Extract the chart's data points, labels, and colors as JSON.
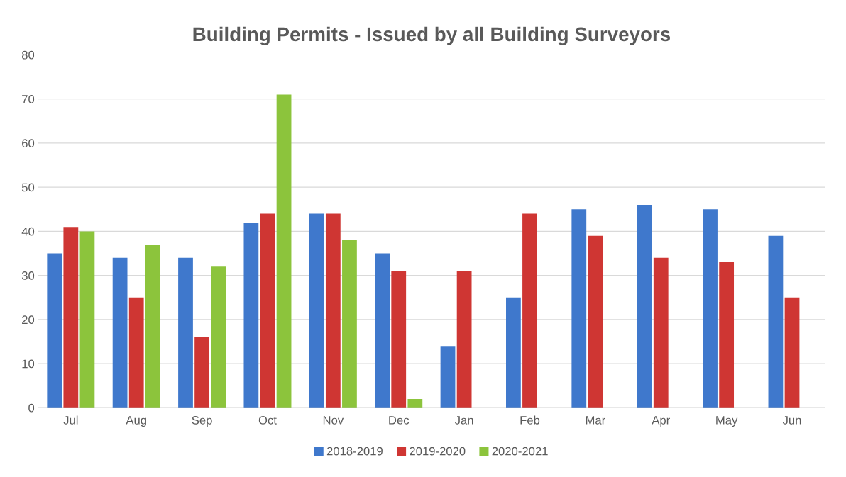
{
  "chart_data": {
    "type": "bar",
    "title": "Building Permits - Issued by all Building Surveyors",
    "categories": [
      "Jul",
      "Aug",
      "Sep",
      "Oct",
      "Nov",
      "Dec",
      "Jan",
      "Feb",
      "Mar",
      "Apr",
      "May",
      "Jun"
    ],
    "series": [
      {
        "name": "2018-2019",
        "color": "#3f78cc",
        "values": [
          35,
          34,
          34,
          42,
          44,
          35,
          14,
          25,
          45,
          46,
          45,
          39
        ]
      },
      {
        "name": "2019-2020",
        "color": "#cf3633",
        "values": [
          41,
          25,
          16,
          44,
          44,
          31,
          31,
          44,
          39,
          34,
          33,
          25
        ]
      },
      {
        "name": "2020-2021",
        "color": "#8cc43c",
        "values": [
          40,
          37,
          32,
          71,
          38,
          2,
          null,
          null,
          null,
          null,
          null,
          null
        ]
      }
    ],
    "ylim": [
      0,
      80
    ],
    "yticks": [
      0,
      10,
      20,
      30,
      40,
      50,
      60,
      70,
      80
    ],
    "grid": "y",
    "legend": "bottom"
  }
}
